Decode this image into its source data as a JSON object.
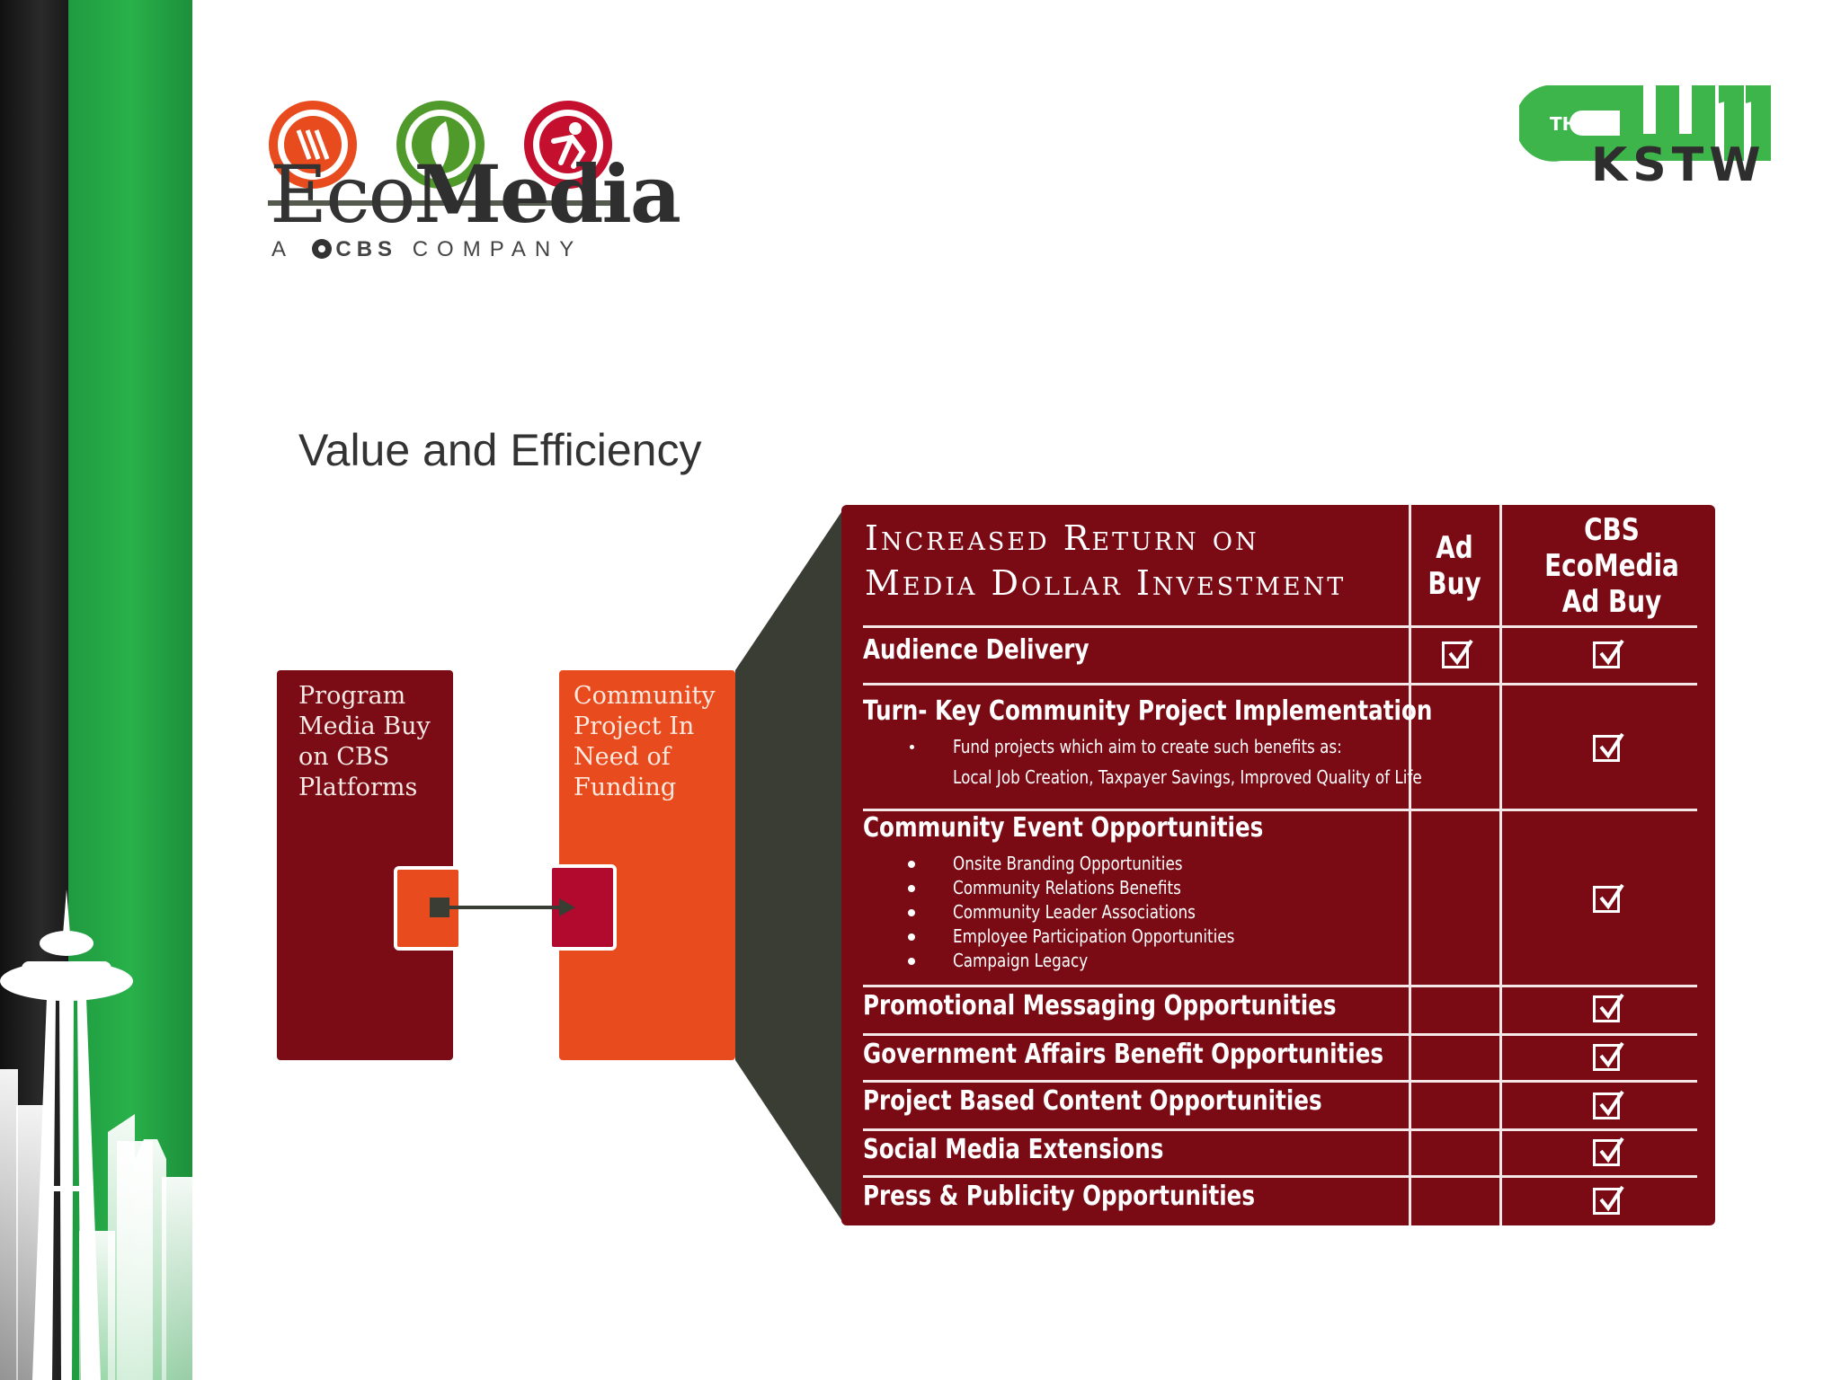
{
  "slide": {
    "heading": "Value and Efficiency"
  },
  "logos": {
    "ecomedia_word_light": "Eco",
    "ecomedia_word_bold": "Media",
    "ecomedia_sub_prefix": "A",
    "ecomedia_sub_cbs": "CBS",
    "ecomedia_sub_suffix": "COMPANY",
    "cw_the": "THE",
    "cw_station": "KSTW"
  },
  "diagram": {
    "program_box": "Program Media Buy on CBS Platforms",
    "community_box": "Community Project In Need of Funding"
  },
  "table": {
    "title_line1": "Increased Return on",
    "title_line2": "Media Dollar Investment",
    "col_ad_buy": "Ad Buy",
    "col_cbs": "CBS EcoMedia Ad Buy",
    "rows": [
      {
        "label": "Audience Delivery",
        "ad_buy": true,
        "cbs": true
      },
      {
        "label": "Turn- Key Community Project Implementation",
        "ad_buy": false,
        "cbs": true,
        "bullets": [
          "Fund projects which aim to create such benefits as:",
          "Local Job Creation, Taxpayer Savings, Improved Quality of Life"
        ]
      },
      {
        "label": "Community Event Opportunities",
        "ad_buy": false,
        "cbs": true,
        "bullets": [
          "Onsite Branding Opportunities",
          "Community Relations Benefits",
          "Community Leader Associations",
          "Employee Participation Opportunities",
          "Campaign Legacy"
        ]
      },
      {
        "label": "Promotional Messaging Opportunities",
        "ad_buy": false,
        "cbs": true
      },
      {
        "label": "Government Affairs Benefit Opportunities",
        "ad_buy": false,
        "cbs": true
      },
      {
        "label": "Project Based Content Opportunities",
        "ad_buy": false,
        "cbs": true
      },
      {
        "label": "Social Media Extensions",
        "ad_buy": false,
        "cbs": true
      },
      {
        "label": "Press & Publicity Opportunities",
        "ad_buy": false,
        "cbs": true
      }
    ]
  },
  "colors": {
    "maroon": "#7a0a14",
    "orange": "#e84b1e",
    "green": "#29b14a",
    "dark_funnel": "#3a3d33"
  }
}
